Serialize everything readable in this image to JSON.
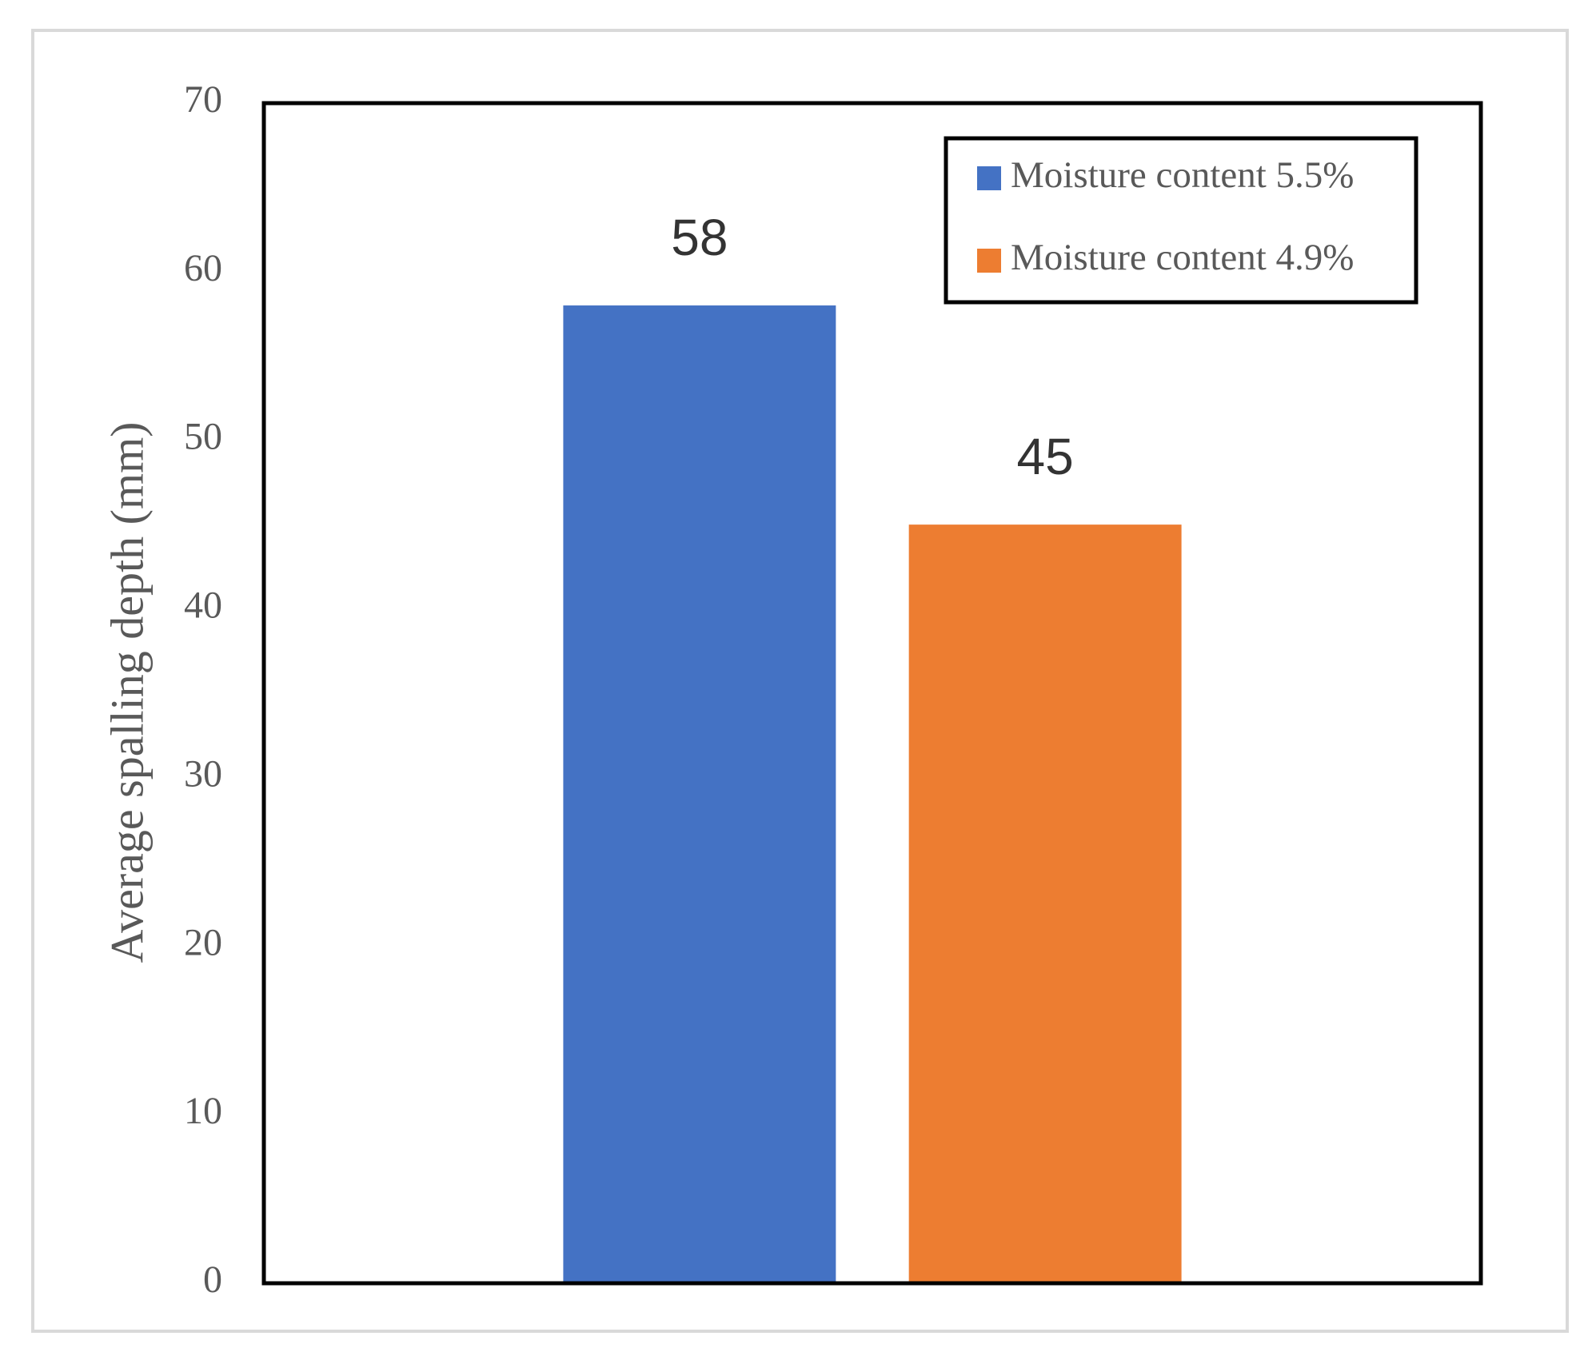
{
  "chart_data": {
    "type": "bar",
    "ylabel": "Average spalling depth (mm)",
    "series": [
      {
        "name": "Moisture content 5.5%",
        "color": "#4472c4",
        "values": [
          58
        ]
      },
      {
        "name": "Moisture content 4.9%",
        "color": "#ed7d31",
        "values": [
          45
        ]
      }
    ],
    "ylim": [
      0,
      70
    ],
    "yticks": [
      0,
      10,
      20,
      30,
      40,
      50,
      60,
      70
    ],
    "grid": false,
    "legend": "upper right"
  }
}
